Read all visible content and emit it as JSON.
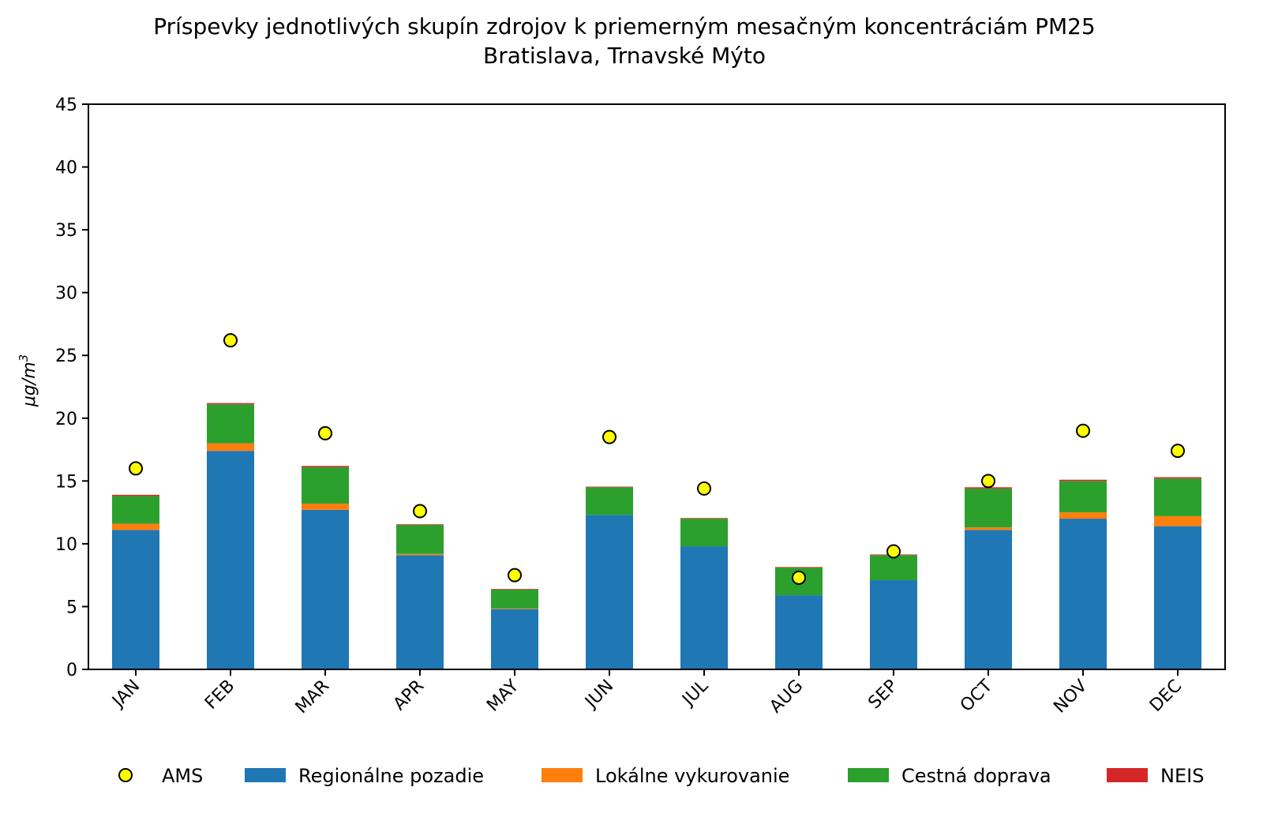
{
  "chart_data": {
    "type": "bar",
    "stacked": true,
    "title": "Príspevky jednotlivých skupín zdrojov k priemerným mesačným koncentráciám PM25",
    "subtitle": "Bratislava, Trnavské Mýto",
    "xlabel": "",
    "ylabel": "μg/m3",
    "ylim": [
      0,
      45
    ],
    "yticks": [
      0,
      5,
      10,
      15,
      20,
      25,
      30,
      35,
      40,
      45
    ],
    "categories": [
      "JAN",
      "FEB",
      "MAR",
      "APR",
      "MAY",
      "JUN",
      "JUL",
      "AUG",
      "SEP",
      "OCT",
      "NOV",
      "DEC"
    ],
    "grid": false,
    "legend_position": "bottom",
    "series": [
      {
        "name": "Regionálne pozadie",
        "color": "#1f77b4",
        "values": [
          11.1,
          17.4,
          12.7,
          9.1,
          4.8,
          12.3,
          9.8,
          5.9,
          7.1,
          11.1,
          12.0,
          11.4
        ]
      },
      {
        "name": "Lokálne vykurovanie",
        "color": "#ff7f0e",
        "values": [
          0.5,
          0.6,
          0.5,
          0.1,
          0.05,
          0.0,
          0.0,
          0.0,
          0.0,
          0.2,
          0.5,
          0.8
        ]
      },
      {
        "name": "Cestná doprava",
        "color": "#2ca02c",
        "values": [
          2.2,
          3.1,
          2.9,
          2.3,
          1.5,
          2.2,
          2.2,
          2.2,
          2.0,
          3.1,
          2.5,
          3.0
        ]
      },
      {
        "name": "NEIS",
        "color": "#d62728",
        "values": [
          0.1,
          0.1,
          0.1,
          0.05,
          0.05,
          0.05,
          0.05,
          0.05,
          0.05,
          0.1,
          0.1,
          0.1
        ]
      }
    ],
    "markers": {
      "name": "AMS",
      "color": "#ffff00",
      "edge_color": "#000000",
      "values": [
        16.0,
        26.2,
        18.8,
        12.6,
        7.5,
        18.5,
        14.4,
        7.3,
        9.4,
        15.0,
        19.0,
        17.4
      ]
    }
  }
}
